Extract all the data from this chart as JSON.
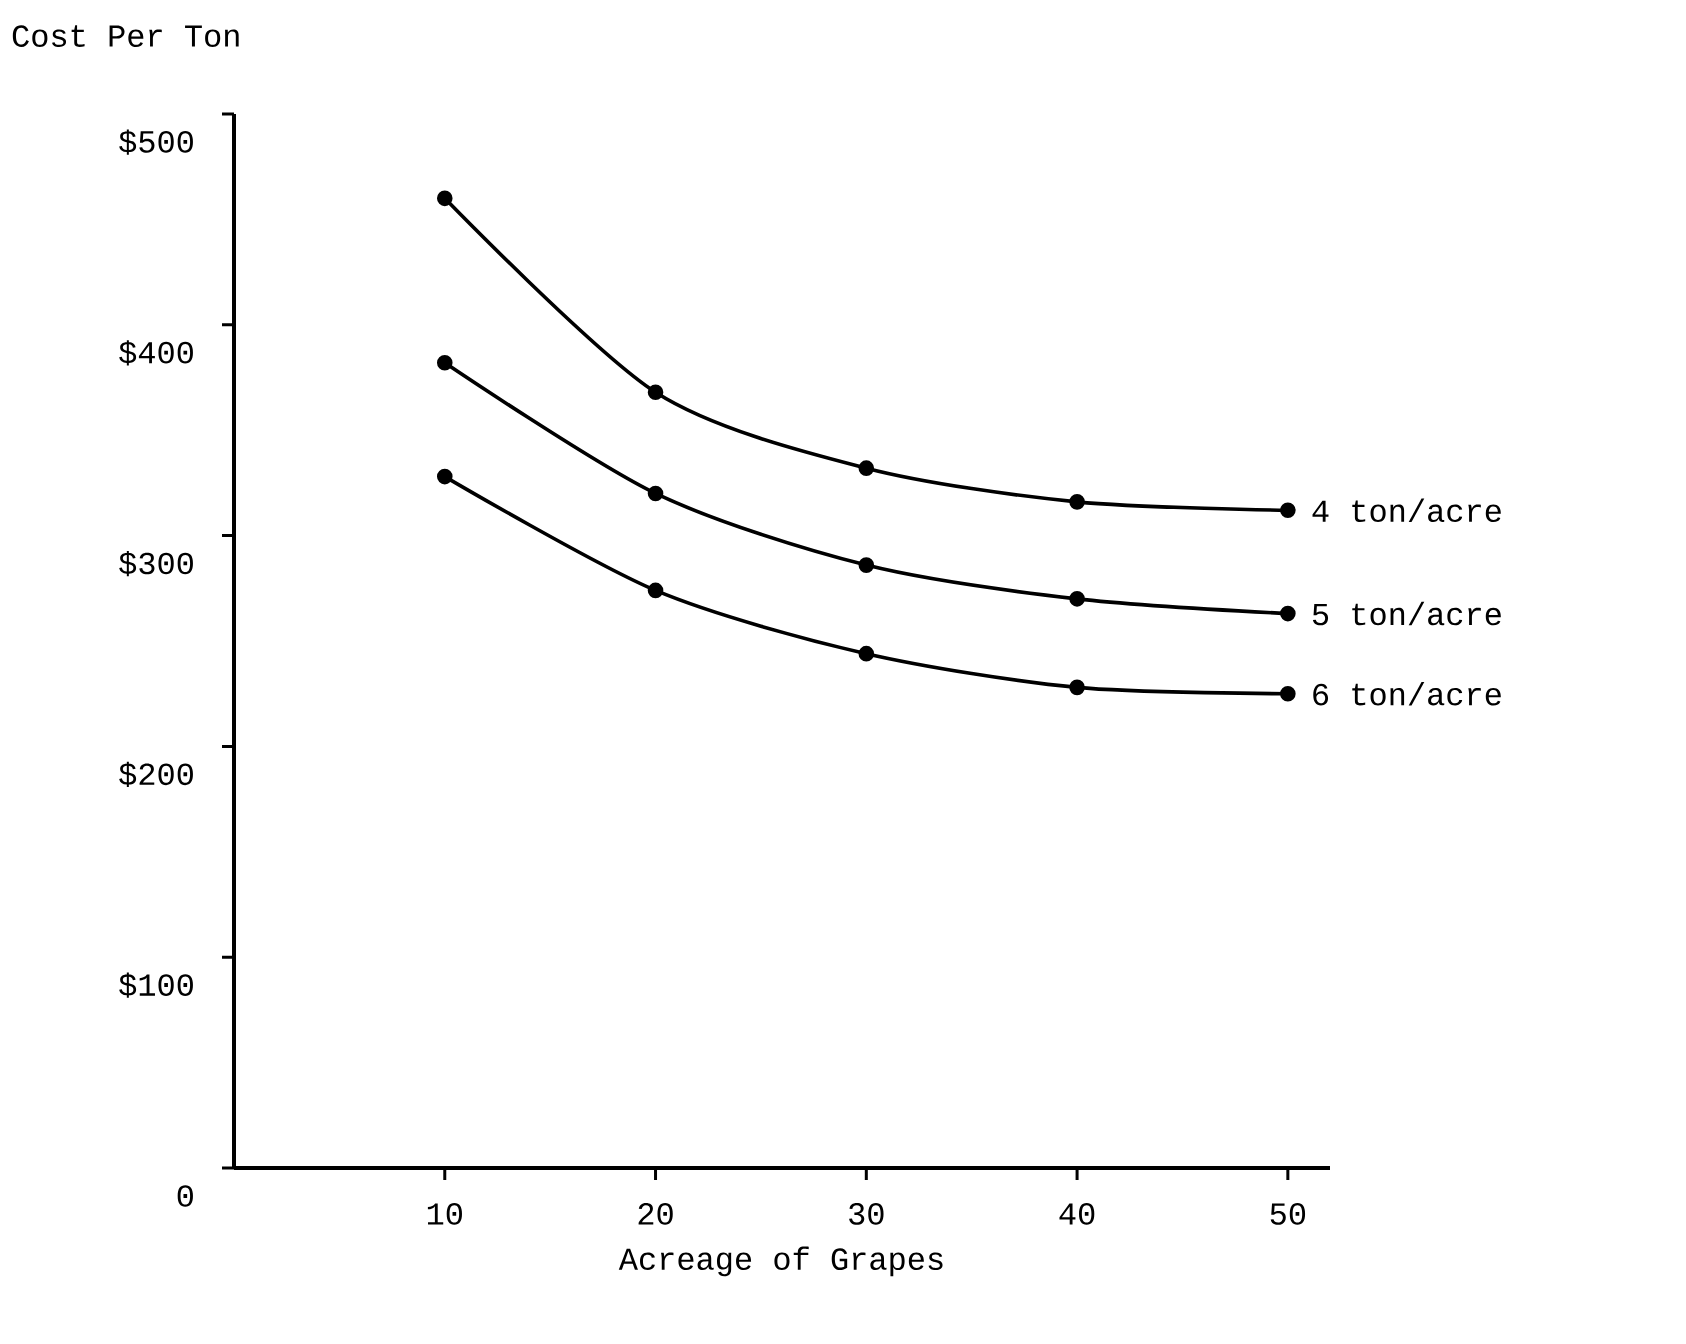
{
  "chart_data": {
    "type": "line",
    "xlabel": "Acreage of Grapes",
    "ylabel": "Cost Per Ton",
    "x": [
      10,
      20,
      30,
      40,
      50
    ],
    "series": [
      {
        "name": "4 ton/acre",
        "color": "#000000",
        "values": [
          460,
          368,
          332,
          316,
          312
        ]
      },
      {
        "name": "5 ton/acre",
        "color": "#000000",
        "values": [
          382,
          320,
          286,
          270,
          263
        ]
      },
      {
        "name": "6 ton/acre",
        "color": "#000000",
        "values": [
          328,
          274,
          244,
          228,
          225
        ]
      }
    ],
    "xlim": [
      0,
      52
    ],
    "ylim": [
      0,
      500
    ],
    "xticks": [
      10,
      20,
      30,
      40,
      50
    ],
    "yticks": [
      {
        "value": 0,
        "label": "0"
      },
      {
        "value": 100,
        "label": "$100"
      },
      {
        "value": 200,
        "label": "$200"
      },
      {
        "value": 300,
        "label": "$300"
      },
      {
        "value": 400,
        "label": "$400"
      },
      {
        "value": 500,
        "label": "$500"
      }
    ],
    "marker": "circle",
    "line_style": "solid",
    "legend": false,
    "grid": false
  }
}
